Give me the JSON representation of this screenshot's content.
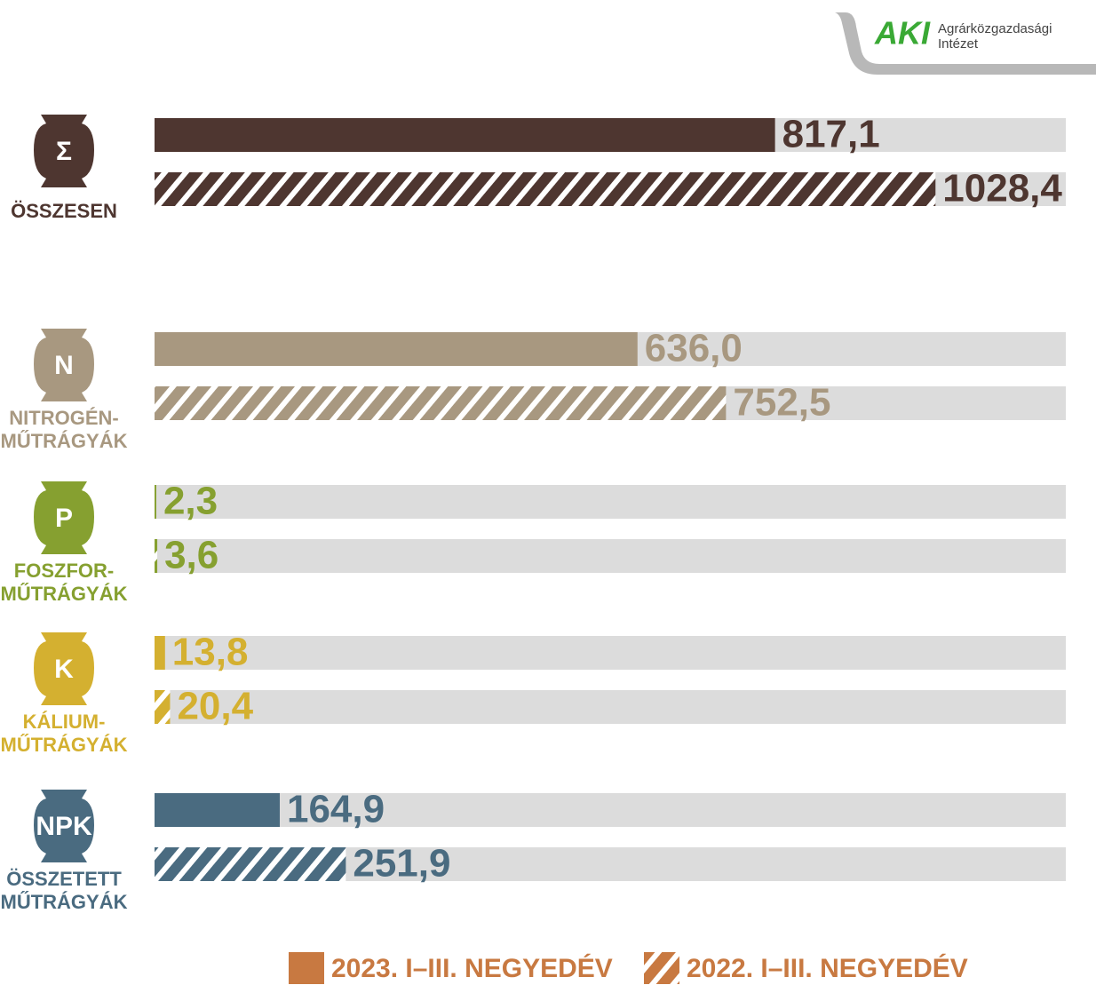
{
  "logo": {
    "mark": "AKI",
    "text": [
      "Agrárközgazdasági",
      "Intézet"
    ]
  },
  "chart_data": {
    "type": "bar",
    "orientation": "horizontal",
    "categories": [
      [
        "ÖSSZESEN"
      ],
      [
        "NITROGÉN-",
        "MŰTRÁGYÁK"
      ],
      [
        "FOSZFOR-",
        "MŰTRÁGYÁK"
      ],
      [
        "KÁLIUM-",
        "MŰTRÁGYÁK"
      ],
      [
        "ÖSSZETETT",
        "MŰTRÁGYÁK"
      ]
    ],
    "icons": [
      "Σ",
      "N",
      "P",
      "K",
      "NPK"
    ],
    "category_colors": [
      "#4e3630",
      "#a89880",
      "#86a030",
      "#d4b030",
      "#4a6b80"
    ],
    "label_colors": [
      "#4e3630",
      "#a89880",
      "#86a030",
      "#d4b030",
      "#4a6b80"
    ],
    "xlim": [
      0,
      1200
    ],
    "series": [
      {
        "name": "2023. I–III. NEGYEDÉV",
        "color": "#c87941",
        "hatched": false,
        "values": [
          817.1,
          636.0,
          2.3,
          13.8,
          164.9
        ],
        "value_labels": [
          "817,1",
          "636,0",
          "2,3",
          "13,8",
          "164,9"
        ]
      },
      {
        "name": "2022. I–III. NEGYEDÉV",
        "color": "#c87941",
        "hatched": true,
        "values": [
          1028.4,
          752.5,
          3.6,
          20.4,
          251.9
        ],
        "value_labels": [
          "1028,4",
          "752,5",
          "3,6",
          "20,4",
          "251,9"
        ]
      }
    ]
  }
}
